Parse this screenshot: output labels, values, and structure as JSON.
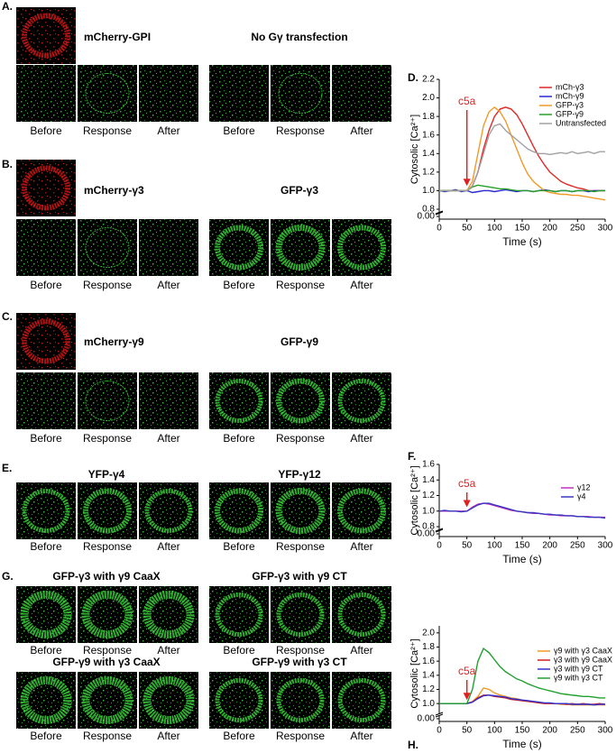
{
  "panels": [
    {
      "label": "A.",
      "titles": [
        "mCherry-GPI",
        "No Gγ transfection"
      ],
      "captions": [
        "Before",
        "Response",
        "After",
        "Before",
        "Response",
        "After"
      ]
    },
    {
      "label": "B.",
      "titles": [
        "mCherry-γ3",
        "GFP-γ3"
      ],
      "captions": [
        "Before",
        "Response",
        "After",
        "Before",
        "Response",
        "After"
      ]
    },
    {
      "label": "C.",
      "titles": [
        "mCherry-γ9",
        "GFP-γ9"
      ],
      "captions": [
        "Before",
        "Response",
        "After",
        "Before",
        "Response",
        "After"
      ]
    },
    {
      "label": "E.",
      "titles": [
        "YFP-γ4",
        "YFP-γ12"
      ],
      "captions": [
        "Before",
        "Response",
        "After",
        "Before",
        "Response",
        "After"
      ]
    },
    {
      "label": "G.",
      "titles": [
        "GFP-γ3 with γ9 CaaX",
        "GFP-γ3 with γ9 CT",
        "GFP-γ9 with γ3 CaaX",
        "GFP-γ9 with γ3 CT"
      ],
      "captions": [
        "Before",
        "Response",
        "After",
        "Before",
        "Response",
        "After",
        "Before",
        "Response",
        "After",
        "Before",
        "Response",
        "After"
      ]
    }
  ],
  "chart_data": [
    {
      "type": "line",
      "panel_label": "D.",
      "xlabel": "Time (s)",
      "ylabel": "Cytosolic [Ca²⁺]",
      "annotation": "c5a",
      "annotation_x": 50,
      "xlim": [
        0,
        300
      ],
      "xticks": [
        0,
        50,
        100,
        150,
        200,
        250,
        300
      ],
      "ylim": [
        0.8,
        2.2
      ],
      "yticks": [
        {
          "value": 0,
          "label": "0.00"
        },
        0.8,
        {
          "value": 1,
          "label": "1.0"
        },
        1.2,
        1.4,
        1.6,
        1.8,
        {
          "value": 2,
          "label": "2.0"
        },
        2.2
      ],
      "legend": "upper right",
      "x": [
        0,
        10,
        20,
        30,
        40,
        50,
        60,
        70,
        80,
        90,
        100,
        110,
        120,
        130,
        140,
        150,
        160,
        170,
        180,
        190,
        200,
        210,
        220,
        230,
        240,
        250,
        260,
        270,
        280,
        290,
        300
      ],
      "series": [
        {
          "name": "mCh-γ3",
          "color": "#e02828",
          "values": [
            1.0,
            1.0,
            1.0,
            1.0,
            1.0,
            1.0,
            1.05,
            1.2,
            1.45,
            1.65,
            1.8,
            1.88,
            1.9,
            1.88,
            1.82,
            1.72,
            1.6,
            1.48,
            1.37,
            1.28,
            1.2,
            1.15,
            1.1,
            1.07,
            1.05,
            1.03,
            1.02,
            1.0,
            1.0,
            1.0,
            1.0
          ]
        },
        {
          "name": "mCh-γ9",
          "color": "#2828d0",
          "values": [
            1.0,
            0.99,
            1.0,
            1.01,
            0.99,
            1.0,
            0.98,
            0.99,
            1.0,
            1.0,
            0.99,
            1.0,
            1.01,
            1.0,
            0.99,
            1.0,
            1.0,
            0.99,
            1.0,
            1.01,
            1.0,
            0.99,
            1.0,
            1.0,
            0.99,
            1.0,
            1.0,
            0.99,
            1.0,
            1.0,
            1.0
          ]
        },
        {
          "name": "GFP-γ3",
          "color": "#f09a28",
          "values": [
            1.0,
            1.0,
            1.0,
            1.0,
            1.0,
            1.0,
            1.1,
            1.4,
            1.7,
            1.85,
            1.9,
            1.85,
            1.75,
            1.6,
            1.45,
            1.3,
            1.18,
            1.1,
            1.05,
            1.0,
            0.98,
            0.97,
            0.96,
            0.96,
            0.95,
            0.95,
            0.94,
            0.93,
            0.92,
            0.91,
            0.9
          ]
        },
        {
          "name": "GFP-γ9",
          "color": "#28a028",
          "values": [
            1.0,
            1.0,
            1.0,
            1.0,
            1.0,
            1.0,
            1.04,
            1.06,
            1.05,
            1.04,
            1.03,
            1.02,
            1.02,
            1.01,
            1.0,
            1.0,
            1.0,
            0.99,
            1.0,
            1.0,
            1.0,
            0.99,
            1.0,
            1.0,
            0.99,
            1.0,
            1.0,
            1.0,
            0.99,
            1.0,
            1.0
          ]
        },
        {
          "name": "Untransfected",
          "color": "#a0a0a0",
          "values": [
            1.0,
            1.0,
            1.0,
            1.0,
            1.0,
            1.0,
            1.05,
            1.2,
            1.4,
            1.6,
            1.7,
            1.72,
            1.65,
            1.6,
            1.55,
            1.5,
            1.45,
            1.42,
            1.4,
            1.4,
            1.39,
            1.4,
            1.41,
            1.4,
            1.42,
            1.4,
            1.41,
            1.42,
            1.4,
            1.42,
            1.42
          ]
        }
      ]
    },
    {
      "type": "line",
      "panel_label": "F.",
      "xlabel": "Time (s)",
      "ylabel": "Cytosolic [Ca²⁺]",
      "annotation": "c5a",
      "annotation_x": 50,
      "xlim": [
        0,
        300
      ],
      "xticks": [
        0,
        50,
        100,
        150,
        200,
        250,
        300
      ],
      "ylim": [
        0.8,
        1.6
      ],
      "yticks": [
        {
          "value": 0,
          "label": "0.00"
        },
        0.8,
        {
          "value": 1,
          "label": "1.0"
        },
        1.2,
        1.4,
        1.6
      ],
      "legend": "lower right",
      "x": [
        0,
        10,
        20,
        30,
        40,
        50,
        60,
        70,
        80,
        90,
        100,
        110,
        120,
        130,
        140,
        150,
        160,
        170,
        180,
        190,
        200,
        210,
        220,
        230,
        240,
        250,
        260,
        270,
        280,
        290,
        300
      ],
      "series": [
        {
          "name": "γ12",
          "color": "#c030c0",
          "values": [
            1.0,
            1.0,
            1.0,
            1.0,
            1.0,
            1.0,
            1.05,
            1.09,
            1.1,
            1.09,
            1.07,
            1.05,
            1.03,
            1.01,
            1.0,
            0.99,
            0.98,
            0.97,
            0.97,
            0.96,
            0.95,
            0.95,
            0.94,
            0.94,
            0.94,
            0.93,
            0.93,
            0.93,
            0.92,
            0.92,
            0.92
          ]
        },
        {
          "name": "γ4",
          "color": "#3838c0",
          "values": [
            1.0,
            1.01,
            1.0,
            1.0,
            0.99,
            1.0,
            1.04,
            1.08,
            1.1,
            1.1,
            1.08,
            1.06,
            1.04,
            1.02,
            1.0,
            0.99,
            0.98,
            0.98,
            0.97,
            0.96,
            0.96,
            0.95,
            0.95,
            0.94,
            0.94,
            0.93,
            0.93,
            0.92,
            0.92,
            0.92,
            0.91
          ]
        }
      ]
    },
    {
      "type": "line",
      "panel_label": "H.",
      "xlabel": "Time (s)",
      "ylabel": "Cytosolic [Ca²⁺]",
      "annotation": "c5a",
      "annotation_x": 50,
      "xlim": [
        0,
        300
      ],
      "xticks": [
        0,
        50,
        100,
        150,
        200,
        250,
        300
      ],
      "ylim": [
        0.9,
        2.1
      ],
      "yticks": [
        {
          "value": 0,
          "label": "0.00"
        },
        {
          "value": 1,
          "label": "1.0"
        },
        1.2,
        1.4,
        1.6,
        1.8,
        {
          "value": 2,
          "label": "2.0"
        }
      ],
      "legend": "upper right",
      "x": [
        0,
        10,
        20,
        30,
        40,
        50,
        60,
        70,
        80,
        90,
        100,
        110,
        120,
        130,
        140,
        150,
        160,
        170,
        180,
        190,
        200,
        210,
        220,
        230,
        240,
        250,
        260,
        270,
        280,
        290,
        300
      ],
      "series": [
        {
          "name": "γ9 with γ3 CaaX",
          "color": "#f09a28",
          "values": [
            1.0,
            1.0,
            1.0,
            1.0,
            1.0,
            1.0,
            1.03,
            1.1,
            1.22,
            1.2,
            1.15,
            1.12,
            1.1,
            1.08,
            1.07,
            1.05,
            1.04,
            1.03,
            1.02,
            1.01,
            1.0,
            1.0,
            0.99,
            0.99,
            0.98,
            0.98,
            0.98,
            0.98,
            0.98,
            0.98,
            0.98
          ]
        },
        {
          "name": "γ3 with γ9 CaaX",
          "color": "#d02020",
          "values": [
            1.0,
            1.0,
            1.0,
            1.0,
            1.0,
            1.0,
            1.02,
            1.08,
            1.12,
            1.12,
            1.1,
            1.09,
            1.08,
            1.06,
            1.05,
            1.04,
            1.03,
            1.02,
            1.01,
            1.0,
            1.0,
            1.0,
            1.0,
            0.99,
            1.0,
            0.99,
            1.0,
            0.99,
            0.99,
            1.0,
            0.99
          ]
        },
        {
          "name": "γ3 with γ9 CT",
          "color": "#3030d0",
          "values": [
            1.0,
            1.0,
            1.0,
            1.0,
            1.0,
            1.0,
            1.02,
            1.07,
            1.11,
            1.12,
            1.11,
            1.1,
            1.09,
            1.07,
            1.06,
            1.05,
            1.04,
            1.03,
            1.02,
            1.01,
            1.01,
            1.0,
            1.0,
            1.0,
            0.99,
            0.99,
            0.99,
            0.99,
            0.98,
            0.99,
            0.99
          ]
        },
        {
          "name": "γ9 with γ3 CT",
          "color": "#20a030",
          "values": [
            1.0,
            1.0,
            1.0,
            1.0,
            1.0,
            1.0,
            1.2,
            1.6,
            1.78,
            1.72,
            1.62,
            1.52,
            1.45,
            1.4,
            1.35,
            1.32,
            1.28,
            1.25,
            1.22,
            1.2,
            1.18,
            1.16,
            1.14,
            1.13,
            1.12,
            1.11,
            1.1,
            1.1,
            1.09,
            1.08,
            1.08
          ]
        }
      ]
    }
  ]
}
